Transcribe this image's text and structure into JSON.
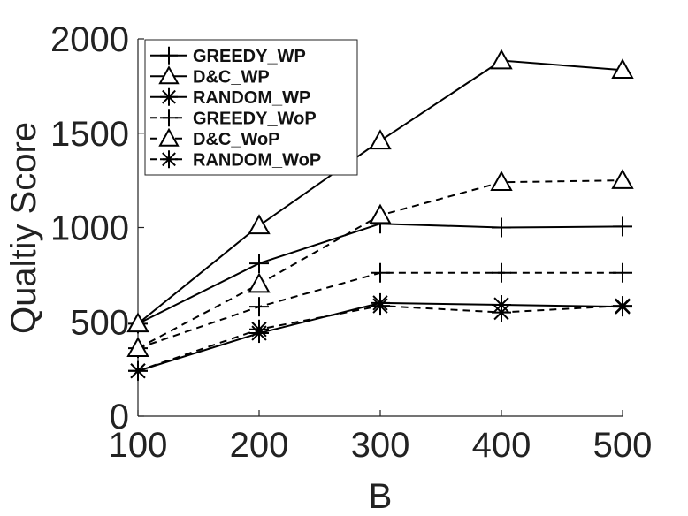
{
  "chart_data": {
    "type": "line",
    "title": "",
    "xlabel": "B",
    "ylabel": "Qualtiy Score",
    "x": [
      100,
      200,
      300,
      400,
      500
    ],
    "xlim": [
      100,
      500
    ],
    "ylim": [
      0,
      2000
    ],
    "xticks": [
      "100",
      "200",
      "300",
      "400",
      "500"
    ],
    "yticks": [
      "0",
      "500",
      "1000",
      "1500",
      "2000"
    ],
    "grid": false,
    "legend_position": "top-left",
    "series": [
      {
        "name": "GREEDY_WP",
        "marker": "plus",
        "line": "solid",
        "values": [
          490,
          810,
          1020,
          1000,
          1005
        ]
      },
      {
        "name": "D&C_WP",
        "marker": "triangle",
        "line": "solid",
        "values": [
          490,
          1010,
          1460,
          1885,
          1835
        ]
      },
      {
        "name": "RANDOM_WP",
        "marker": "asterisk",
        "line": "solid",
        "values": [
          240,
          440,
          600,
          590,
          580
        ]
      },
      {
        "name": "GREEDY_WoP",
        "marker": "plus",
        "line": "dashed",
        "values": [
          360,
          580,
          760,
          760,
          760
        ]
      },
      {
        "name": "D&C_WoP",
        "marker": "triangle",
        "line": "dashed",
        "values": [
          360,
          700,
          1065,
          1240,
          1250
        ]
      },
      {
        "name": "RANDOM_WoP",
        "marker": "asterisk",
        "line": "dashed",
        "values": [
          240,
          460,
          585,
          550,
          585
        ]
      }
    ],
    "line_color": "#000000"
  }
}
